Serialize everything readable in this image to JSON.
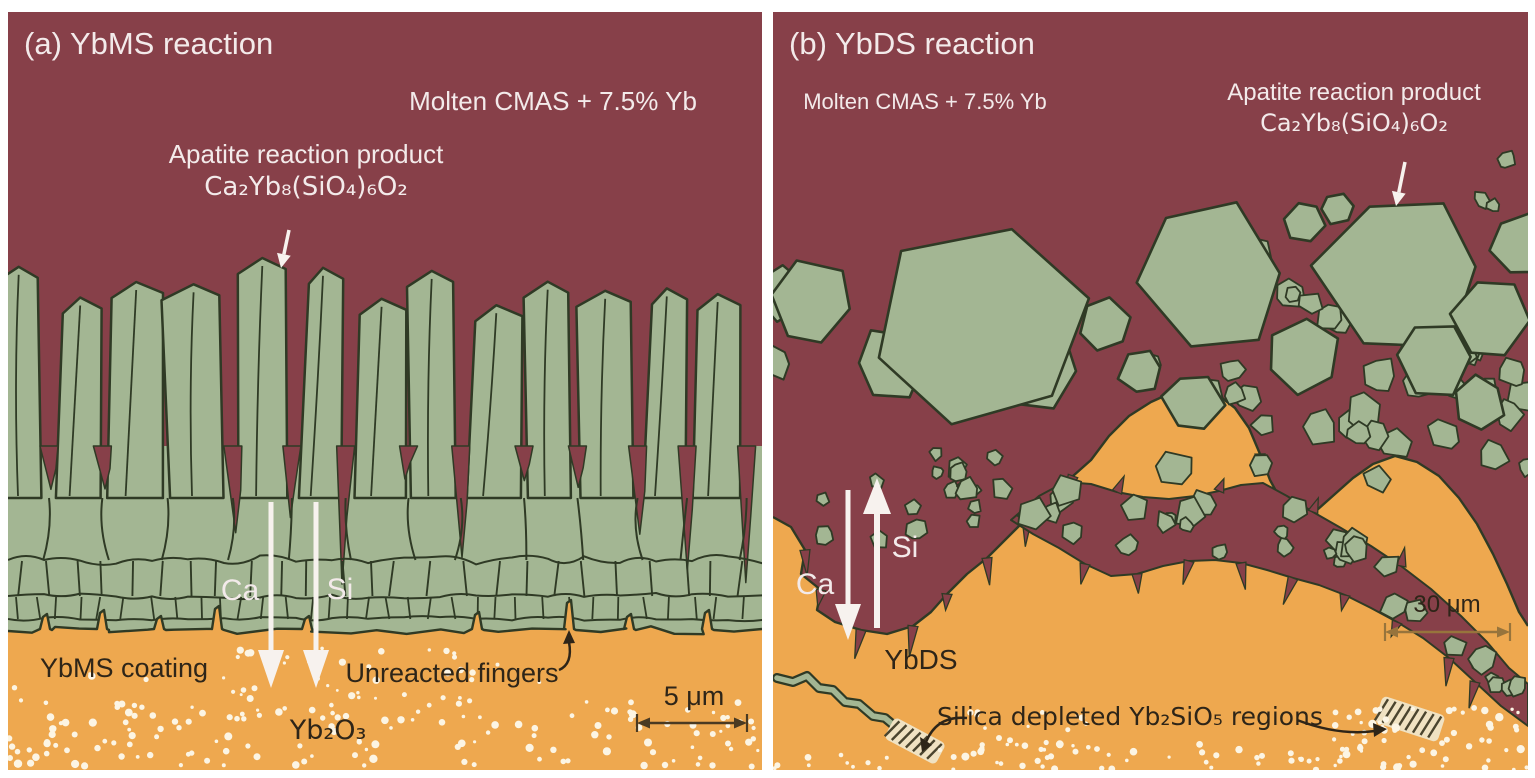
{
  "figure": {
    "panel_a": {
      "title": "(a) YbMS reaction",
      "molten_label": "Molten CMAS + 7.5% Yb",
      "apatite_label_line1": "Apatite reaction product",
      "apatite_label_line2": "Ca₂Yb₈(SiO₄)₆O₂",
      "ca_arrow_label": "Ca",
      "si_arrow_label": "Si",
      "coating_label": "YbMS coating",
      "unreacted_label": "Unreacted fingers",
      "oxide_label": "Yb₂O₃",
      "scale_bar_label": "5 μm"
    },
    "panel_b": {
      "title": "(b) YbDS reaction",
      "molten_label": "Molten CMAS + 7.5% Yb",
      "apatite_label_line1": "Apatite reaction product",
      "apatite_label_line2": "Ca₂Yb₈(SiO₄)₆O₂",
      "ca_arrow_label": "Ca",
      "si_arrow_label": "Si",
      "coating_label": "YbDS",
      "silica_label": "Silica depleted Yb₂SiO₅ regions",
      "scale_bar_label": "30 μm"
    },
    "colors": {
      "molten_cmas": "#874049",
      "apatite_green": "#a3b693",
      "coating_orange": "#eea84f",
      "outline_dark": "#2f3a25",
      "oxide_dot_white": "#fcf5e4",
      "text_dark": "#2e2518",
      "text_light": "#f3eaea",
      "arrow_white": "#f7f2ee",
      "scalebar_a": "#4a3a22",
      "scalebar_b": "#97743c",
      "hatch_fill": "#f0e2c2",
      "hatch_stripe": "#4a442e"
    }
  }
}
